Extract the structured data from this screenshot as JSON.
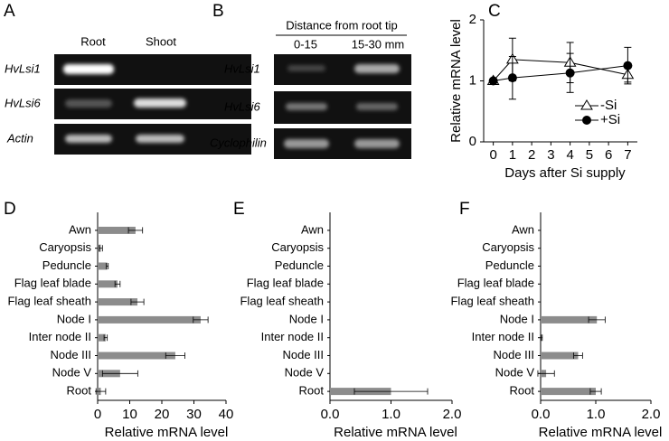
{
  "gels": [
    {
      "panel": "A",
      "columns": [
        "Root",
        "Shoot"
      ],
      "rows": [
        "HvLsi1",
        "HvLsi6",
        "Actin"
      ]
    },
    {
      "panel": "B",
      "heading": "Distance from root tip",
      "columns": [
        "0-15",
        "15-30 mm"
      ],
      "rows": [
        "HvLsi1",
        "HvLsi6",
        "Cyclophilin"
      ]
    }
  ],
  "chart_data": [
    {
      "type": "line",
      "panel": "C",
      "ylabel": "Relative mRNA level",
      "xlabel": "Days after Si supply",
      "x": [
        0,
        1,
        4,
        7
      ],
      "series": [
        {
          "name": "-Si",
          "marker": "triangle",
          "color": "#000000",
          "values": [
            1.0,
            1.35,
            1.3,
            1.1
          ],
          "errors": [
            0,
            0.35,
            0.33,
            0.12
          ]
        },
        {
          "name": "+Si",
          "marker": "circle",
          "color": "#000000",
          "values": [
            1.0,
            1.05,
            1.13,
            1.25
          ],
          "errors": [
            0,
            0.35,
            0.32,
            0.3
          ]
        }
      ],
      "xlim": [
        -0.5,
        7.5
      ],
      "xticks": [
        0,
        1,
        2,
        3,
        4,
        5,
        6,
        7
      ],
      "ylim": [
        0,
        2
      ],
      "yticks": [
        0,
        1,
        2
      ],
      "legend": "right"
    },
    {
      "type": "barh",
      "panel": "D",
      "xlabel": "Relative mRNA level",
      "color": "#8c8c8c",
      "categories": [
        "Awn",
        "Caryopsis",
        "Peduncle",
        "Flag leaf blade",
        "Flag leaf sheath",
        "Node I",
        "Inter node II",
        "Node III",
        "Node V",
        "Root"
      ],
      "values": [
        11.8,
        1,
        3,
        6.2,
        12.4,
        32.1,
        2.5,
        24.2,
        7,
        1
      ],
      "errors": [
        2.2,
        0.5,
        0.3,
        0.8,
        2,
        2.3,
        0.5,
        3,
        5.5,
        1.5
      ],
      "xlim": [
        0,
        40
      ],
      "xticks": [
        0,
        10,
        20,
        30,
        40
      ]
    },
    {
      "type": "barh",
      "panel": "E",
      "xlabel": "Relative mRNA level",
      "color": "#8c8c8c",
      "categories": [
        "Awn",
        "Caryopsis",
        "Peduncle",
        "Flag leaf blade",
        "Flag leaf sheath",
        "Node I",
        "Inter node II",
        "Node III",
        "Node V",
        "Root"
      ],
      "values": [
        0,
        0,
        0,
        0,
        0,
        0,
        0,
        0,
        0,
        1.0
      ],
      "errors": [
        0,
        0,
        0,
        0,
        0,
        0,
        0,
        0,
        0,
        0.6
      ],
      "xlim": [
        0,
        2
      ],
      "xticks": [
        {
          "value": 0,
          "label": "0.0"
        },
        {
          "value": 1,
          "label": "1.0"
        },
        {
          "value": 2,
          "label": "2.0"
        }
      ]
    },
    {
      "type": "barh",
      "panel": "F",
      "xlabel": "Relative mRNA level",
      "color": "#8c8c8c",
      "categories": [
        "Awn",
        "Caryopsis",
        "Peduncle",
        "Flag leaf blade",
        "Flag leaf sheath",
        "Node I",
        "Inter node II",
        "Node III",
        "Node V",
        "Root"
      ],
      "values": [
        0,
        0,
        0,
        0,
        0,
        1.02,
        0.02,
        0.68,
        0.1,
        1.0
      ],
      "errors": [
        0,
        0,
        0,
        0,
        0,
        0.15,
        0.01,
        0.08,
        0.15,
        0.1
      ],
      "xlim": [
        0,
        2
      ],
      "xticks": [
        {
          "value": 0,
          "label": "0.0"
        },
        {
          "value": 1,
          "label": "1.0"
        },
        {
          "value": 2,
          "label": "2.0"
        }
      ]
    }
  ]
}
